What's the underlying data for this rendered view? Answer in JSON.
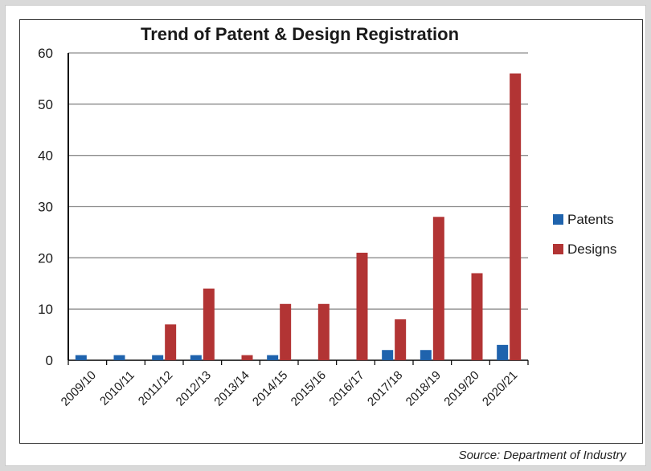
{
  "chart_data": {
    "type": "bar",
    "title": "Trend of Patent & Design Registration",
    "xlabel": "",
    "ylabel": "",
    "ylim": [
      0,
      60
    ],
    "yticks": [
      0,
      10,
      20,
      30,
      40,
      50,
      60
    ],
    "grid": true,
    "legend_position": "right",
    "categories": [
      "2009/10",
      "2010/11",
      "2011/12",
      "2012/13",
      "2013/14",
      "2014/15",
      "2015/16",
      "2016/17",
      "2017/18",
      "2018/19",
      "2019/20",
      "2020/21"
    ],
    "series": [
      {
        "name": "Patents",
        "color": "#1f63ad",
        "values": [
          1,
          1,
          1,
          1,
          0,
          1,
          0,
          0,
          2,
          2,
          0,
          3
        ]
      },
      {
        "name": "Designs",
        "color": "#b23434",
        "values": [
          0,
          0,
          7,
          14,
          1,
          11,
          11,
          21,
          8,
          28,
          17,
          56
        ]
      }
    ]
  },
  "source_note": "Source: Department of Industry"
}
